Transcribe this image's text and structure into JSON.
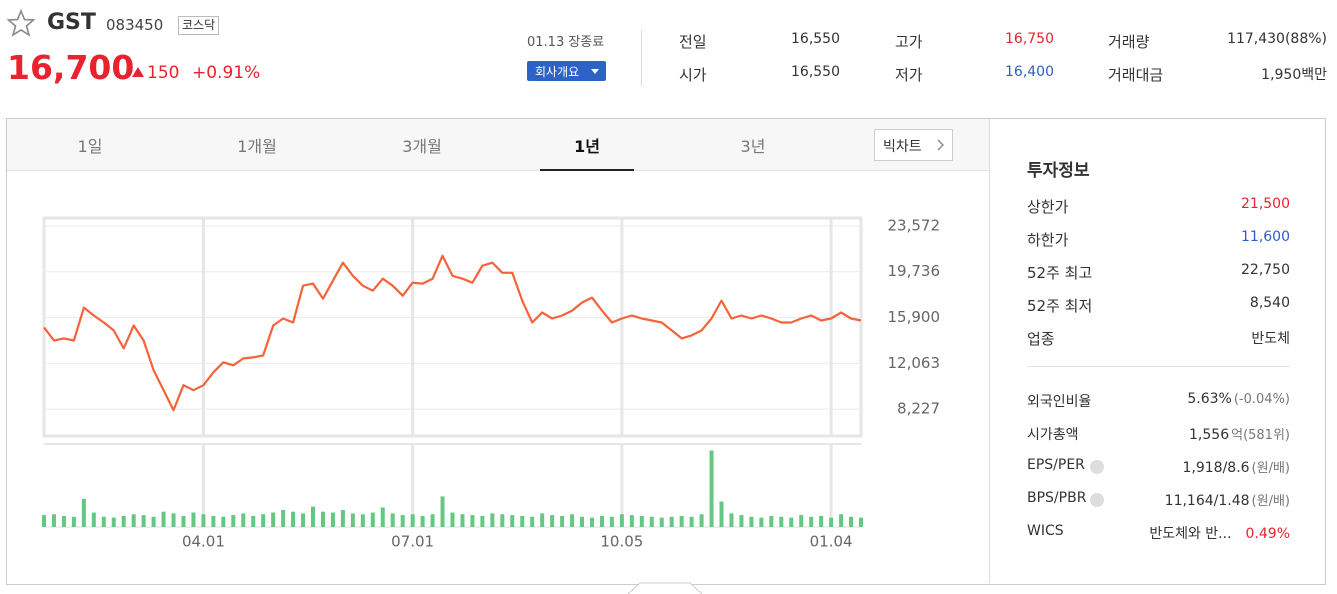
{
  "header": {
    "name": "GST",
    "code": "083450",
    "market": "코스닥",
    "price": "16,700",
    "change": "150",
    "change_rate": "+0.91%"
  },
  "summary": {
    "date": "01.13 장종료",
    "button": "회사개요",
    "stats": [
      [
        "전일",
        "16,550"
      ],
      [
        "시가",
        "16,550"
      ],
      [
        "고가",
        "16,750"
      ],
      [
        "저가",
        "16,400"
      ],
      [
        "거래량",
        "117,430(88%)"
      ],
      [
        "거래대금",
        "1,950백만"
      ]
    ]
  },
  "tabs": {
    "items": [
      "1일",
      "1개월",
      "3개월",
      "1년",
      "3년"
    ],
    "active": 3,
    "big_chart": "빅차트"
  },
  "chart": {
    "type": "line",
    "color": "#f4633a",
    "volume_color": "#63c882",
    "ylim": [
      5975,
      24239
    ],
    "yticks": [
      {
        "value": 23572,
        "label": "23,572"
      },
      {
        "value": 19736,
        "label": "19,736"
      },
      {
        "value": 15900,
        "label": "15,900"
      },
      {
        "value": 12063,
        "label": "12,063"
      },
      {
        "value": 8227,
        "label": "8,227"
      }
    ],
    "categories": [
      null,
      null,
      null,
      null,
      null,
      null,
      null,
      null,
      null,
      null,
      null,
      null,
      null,
      null,
      null,
      null,
      "04.01",
      null,
      null,
      null,
      null,
      null,
      null,
      null,
      null,
      null,
      null,
      null,
      null,
      null,
      null,
      null,
      null,
      null,
      null,
      null,
      null,
      "07.01",
      null,
      null,
      null,
      null,
      null,
      null,
      null,
      null,
      null,
      null,
      null,
      null,
      null,
      null,
      null,
      null,
      null,
      null,
      null,
      null,
      "10.05",
      null,
      null,
      null,
      null,
      null,
      null,
      null,
      null,
      null,
      null,
      null,
      null,
      null,
      null,
      null,
      null,
      null,
      null,
      null,
      null,
      "01.04",
      null,
      null,
      null
    ],
    "values": [
      15070,
      13980,
      14150,
      13980,
      16730,
      16070,
      15480,
      14820,
      13310,
      15230,
      13980,
      11480,
      9810,
      8140,
      10230,
      9810,
      10230,
      11310,
      12150,
      11900,
      12480,
      12560,
      12730,
      15230,
      15820,
      15480,
      18570,
      18740,
      17480,
      18990,
      20490,
      19400,
      18570,
      18150,
      19150,
      18570,
      17730,
      18820,
      18740,
      19150,
      21070,
      19400,
      19150,
      18820,
      20240,
      20490,
      19650,
      19650,
      17320,
      15480,
      16320,
      15820,
      16070,
      16480,
      17150,
      17570,
      16480,
      15480,
      15820,
      16070,
      15820,
      15650,
      15480,
      14820,
      14150,
      14400,
      14820,
      15820,
      17320,
      15820,
      16070,
      15820,
      16070,
      15820,
      15480,
      15480,
      15820,
      16070,
      15650,
      15820,
      16320,
      15820,
      15650
    ],
    "volume_ylim": [
      0,
      1000000
    ],
    "volume": [
      140000,
      150000,
      130000,
      120000,
      330000,
      170000,
      120000,
      110000,
      130000,
      150000,
      140000,
      120000,
      180000,
      160000,
      130000,
      170000,
      150000,
      130000,
      120000,
      140000,
      160000,
      130000,
      150000,
      170000,
      200000,
      180000,
      160000,
      240000,
      180000,
      170000,
      200000,
      160000,
      150000,
      170000,
      230000,
      160000,
      140000,
      150000,
      130000,
      150000,
      360000,
      170000,
      150000,
      140000,
      130000,
      160000,
      150000,
      140000,
      130000,
      120000,
      160000,
      140000,
      130000,
      150000,
      120000,
      110000,
      130000,
      120000,
      150000,
      140000,
      130000,
      120000,
      110000,
      120000,
      130000,
      120000,
      150000,
      900000,
      300000,
      160000,
      140000,
      120000,
      110000,
      130000,
      120000,
      110000,
      140000,
      120000,
      130000,
      110000,
      150000,
      120000,
      110000
    ]
  },
  "invest": {
    "title": "투자정보",
    "rows": [
      [
        "상한가",
        "21,500"
      ],
      [
        "하한가",
        "11,600"
      ],
      [
        "52주 최고",
        "22,750"
      ],
      [
        "52주 최저",
        "8,540"
      ],
      [
        "업종",
        "반도체"
      ]
    ],
    "rows2": [
      [
        "외국인비율",
        "5.63%",
        "(-0.04%)"
      ],
      [
        "시가총액",
        "1,556",
        "억(581위)"
      ],
      [
        "EPS/PER",
        "1,918/8.6",
        "(원/배)"
      ],
      [
        "BPS/PBR",
        "11,164/1.48",
        "(원/배)"
      ],
      [
        "WICS",
        "반도체와 반...",
        "0.49%"
      ]
    ]
  }
}
